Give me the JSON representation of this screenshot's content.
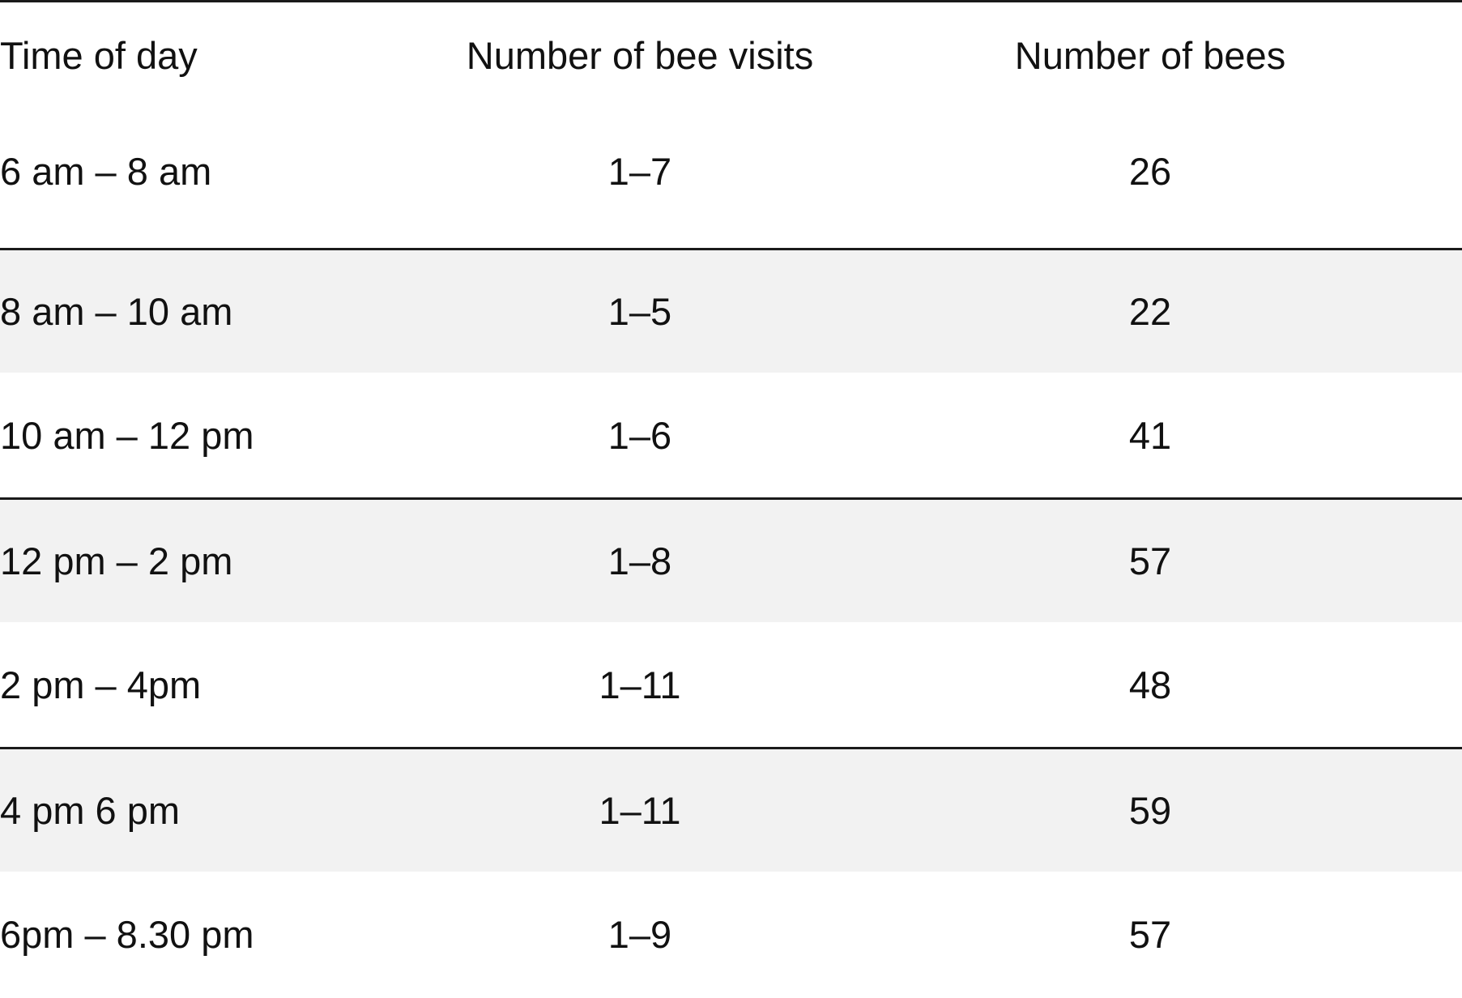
{
  "chart_data": {
    "type": "table",
    "columns": [
      "Time of day",
      "Number of bee visits",
      "Number of bees"
    ],
    "rows": [
      {
        "time": "6 am – 8 am",
        "visits": "1–7",
        "bees": "26"
      },
      {
        "time": "8 am – 10 am",
        "visits": "1–5",
        "bees": "22"
      },
      {
        "time": "10 am – 12 pm",
        "visits": "1–6",
        "bees": "41"
      },
      {
        "time": "12 pm – 2 pm",
        "visits": "1–8",
        "bees": "57"
      },
      {
        "time": "2 pm – 4pm",
        "visits": "1–11",
        "bees": "48"
      },
      {
        "time": "4 pm 6 pm",
        "visits": "1–11",
        "bees": "59"
      },
      {
        "time": "6pm – 8.30 pm",
        "visits": "1–9",
        "bees": "57"
      }
    ]
  },
  "colors": {
    "rule": "#1a1a1a",
    "shade": "#f2f2f2",
    "text": "#111111"
  }
}
